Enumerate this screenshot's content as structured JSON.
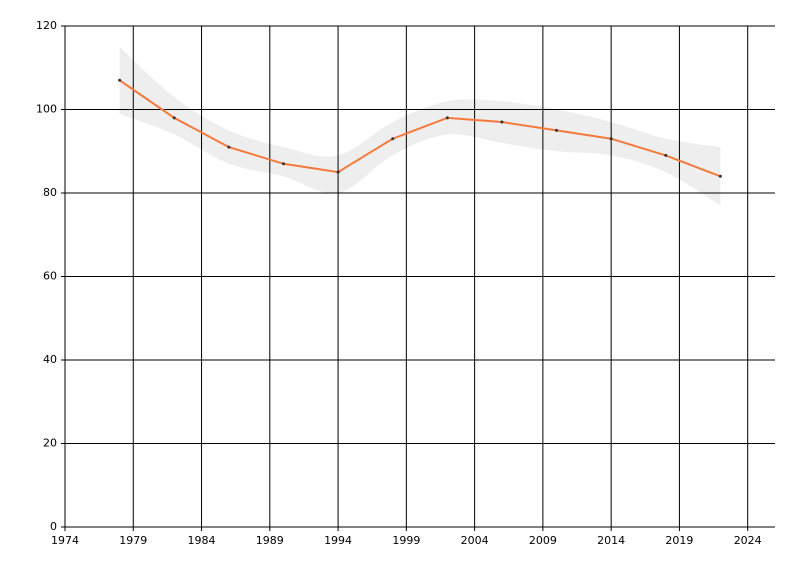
{
  "chart_data": {
    "type": "line",
    "x": [
      1978,
      1982,
      1986,
      1990,
      1994,
      1998,
      2002,
      2006,
      2010,
      2014,
      2018,
      2022
    ],
    "series": [
      {
        "color": "#f47a3c",
        "values": [
          107,
          98,
          91,
          87,
          85,
          93,
          98,
          97,
          95,
          93,
          89,
          84
        ]
      }
    ],
    "band": {
      "color": "#eeeeee",
      "upper": [
        115,
        103,
        95,
        91,
        89,
        97,
        102,
        102,
        100,
        97,
        93,
        91
      ],
      "lower": [
        99,
        94,
        87,
        84,
        80,
        89,
        94,
        92,
        90,
        89,
        85,
        77
      ]
    },
    "xlim": [
      1974,
      2026
    ],
    "xticks": [
      1974,
      1979,
      1984,
      1989,
      1994,
      1999,
      2004,
      2009,
      2014,
      2019,
      2024
    ],
    "ylim": [
      0,
      120
    ],
    "yticks": [
      0,
      20,
      40,
      60,
      80,
      100,
      120
    ],
    "grid": true
  }
}
